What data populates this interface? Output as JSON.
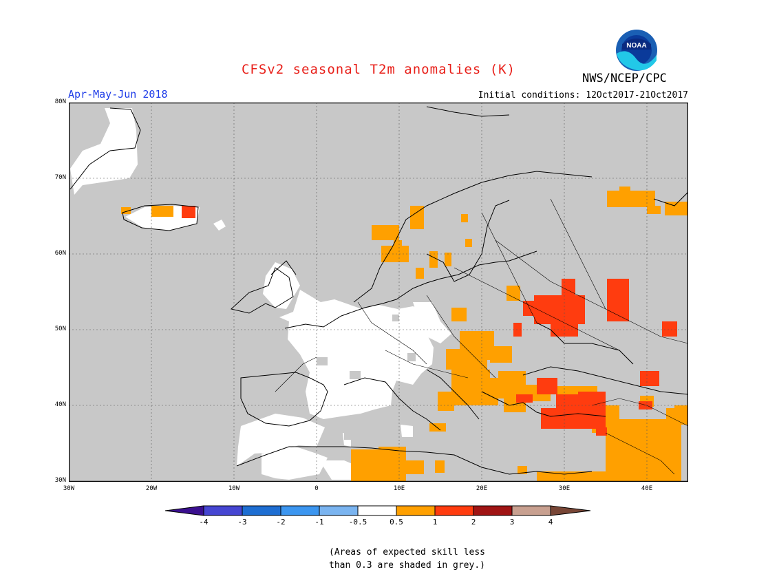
{
  "header": {
    "title": "CFSv2 seasonal T2m anomalies (K)",
    "period": "Apr-May-Jun 2018",
    "initial_conditions": "Initial conditions: 12Oct2017-21Oct2017",
    "agency": "NWS/NCEP/CPC",
    "logo_text": "NOAA"
  },
  "map": {
    "lat_labels": [
      "80N",
      "70N",
      "60N",
      "50N",
      "40N",
      "30N"
    ],
    "lon_labels": [
      "30W",
      "20W",
      "10W",
      "0",
      "10E",
      "20E",
      "30E",
      "40E"
    ]
  },
  "colorbar": {
    "labels": [
      "-4",
      "-3",
      "-2",
      "-1",
      "-0.5",
      "0.5",
      "1",
      "2",
      "3",
      "4"
    ],
    "colors": {
      "below_minus4": "#3a0f8f",
      "minus4_to_minus3": "#4646d2",
      "minus3_to_minus2": "#1e6ed2",
      "minus2_to_minus1": "#3c96f0",
      "minus1_to_minus05": "#7ab4f0",
      "neutral": "#ffffff",
      "p05_to_1": "#ffa000",
      "p1_to_2": "#ff3c0f",
      "p2_to_3": "#a01414",
      "p3_to_4": "#c8a090",
      "above_4": "#784636"
    }
  },
  "footnote": {
    "line1": "(Areas of expected skill less",
    "line2": "than 0.3 are shaded in grey.)"
  },
  "colors": {
    "low_skill_grey": "#c8c8c8",
    "title_red": "#e8201a",
    "period_blue": "#1e3ce8"
  }
}
